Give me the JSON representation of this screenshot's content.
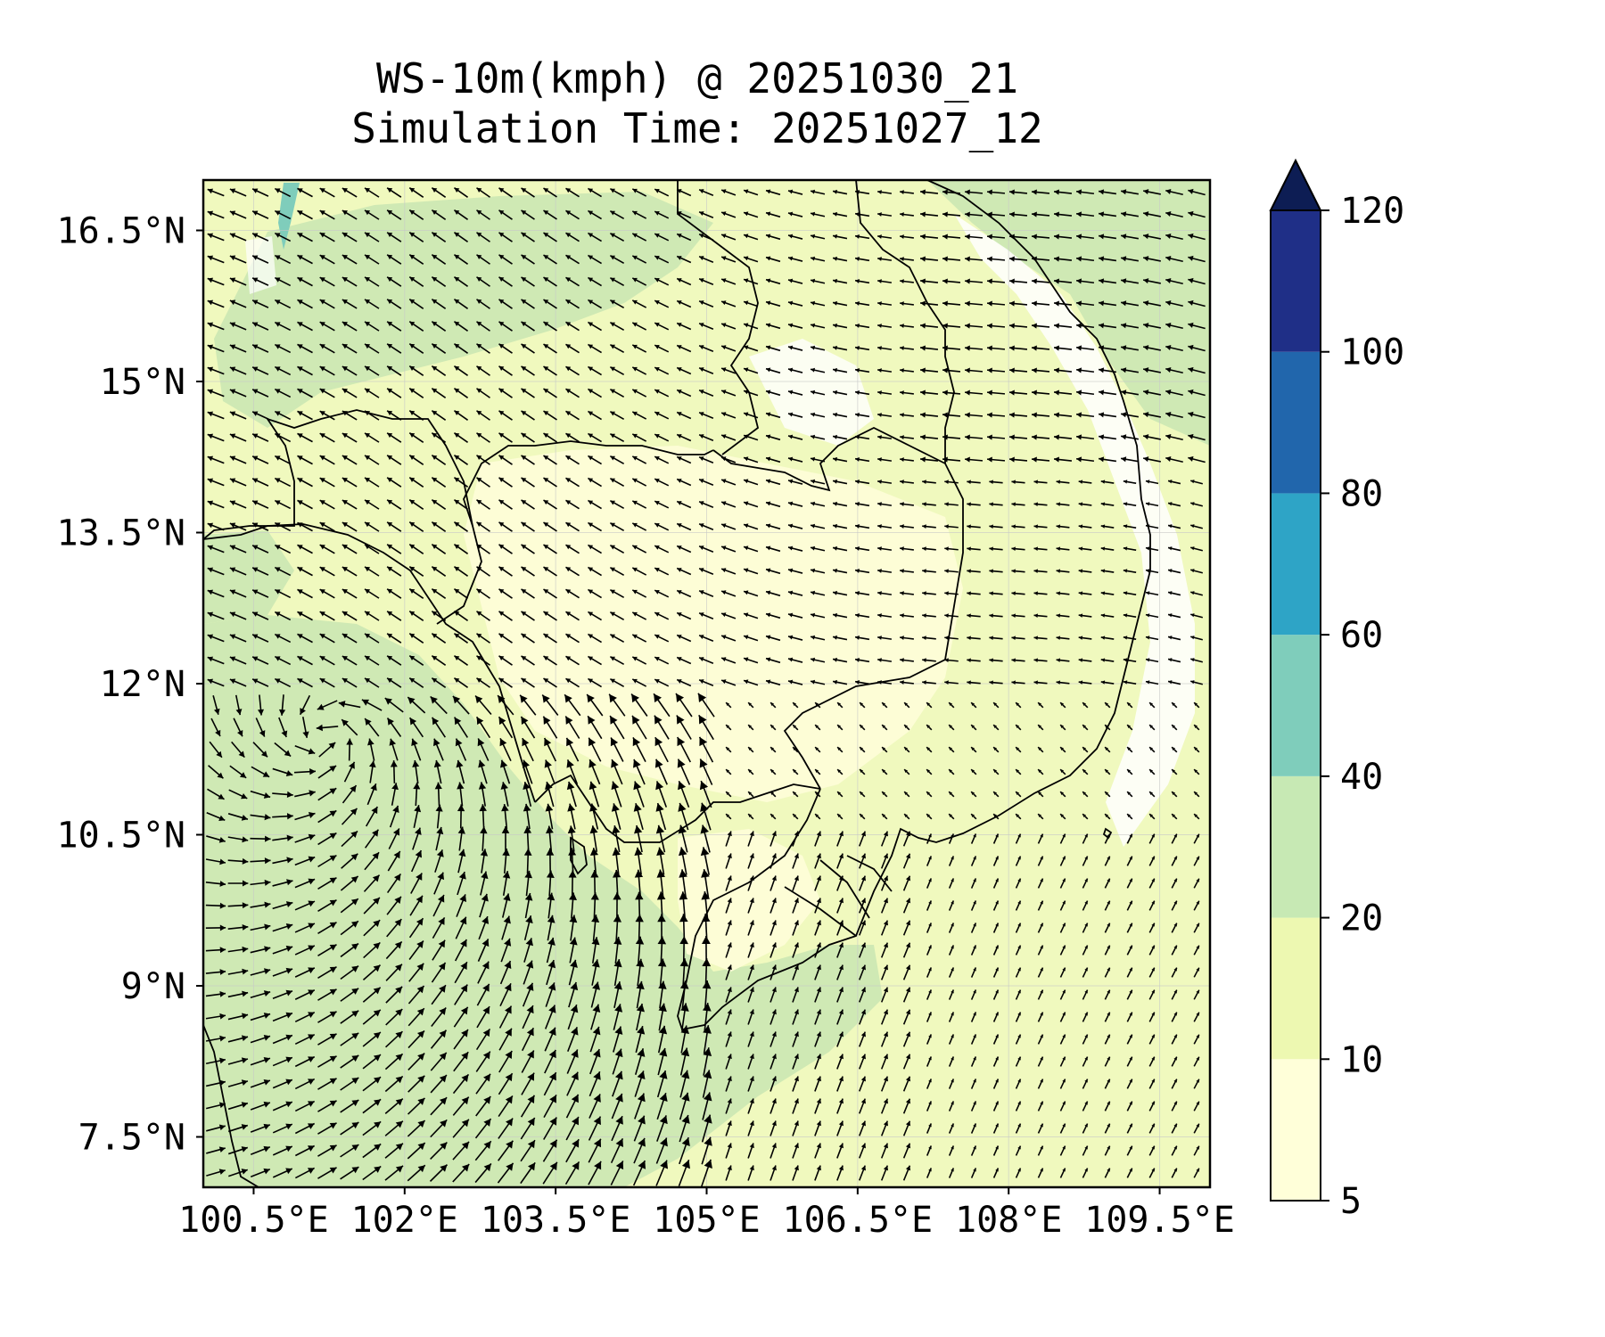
{
  "title": {
    "line1": "WS-10m(kmph) @ 20251030_21",
    "line2": "Simulation Time: 20251027_12"
  },
  "map": {
    "lon_range": [
      100.0,
      110.0
    ],
    "lat_range": [
      7.0,
      17.0
    ],
    "lon_ticks": [
      {
        "value": 100.5,
        "label": "100.5°E"
      },
      {
        "value": 102.0,
        "label": "102°E"
      },
      {
        "value": 103.5,
        "label": "103.5°E"
      },
      {
        "value": 105.0,
        "label": "105°E"
      },
      {
        "value": 106.5,
        "label": "106.5°E"
      },
      {
        "value": 108.0,
        "label": "108°E"
      },
      {
        "value": 109.5,
        "label": "109.5°E"
      }
    ],
    "lat_ticks": [
      {
        "value": 16.5,
        "label": "16.5°N"
      },
      {
        "value": 15.0,
        "label": "15°N"
      },
      {
        "value": 13.5,
        "label": "13.5°N"
      },
      {
        "value": 12.0,
        "label": "12°N"
      },
      {
        "value": 10.5,
        "label": "10.5°N"
      },
      {
        "value": 9.0,
        "label": "9°N"
      },
      {
        "value": 7.5,
        "label": "7.5°N"
      }
    ],
    "gridlines": true,
    "wind_vectors": true,
    "coastlines": true
  },
  "colorbar": {
    "extend": "max",
    "levels": [
      {
        "from": 5,
        "to": 10,
        "color": "#ffffd9"
      },
      {
        "from": 10,
        "to": 20,
        "color": "#edf8b1"
      },
      {
        "from": 20,
        "to": 40,
        "color": "#c7e9b4"
      },
      {
        "from": 40,
        "to": 60,
        "color": "#7fcdbb"
      },
      {
        "from": 60,
        "to": 80,
        "color": "#2ea4c6"
      },
      {
        "from": 80,
        "to": 100,
        "color": "#2166ac"
      },
      {
        "from": 100,
        "to": 120,
        "color": "#1f2f87"
      }
    ],
    "extend_color": "#0d1d54",
    "tick_labels": [
      "5",
      "10",
      "20",
      "40",
      "60",
      "80",
      "100",
      "120"
    ]
  },
  "colors": {
    "land_low": "#fdfdd6",
    "land_mid": "#edf8b1",
    "sea_green": "#cfe9b4",
    "calm": "#ffffff",
    "coastline": "#000000",
    "arrow": "#000000"
  }
}
